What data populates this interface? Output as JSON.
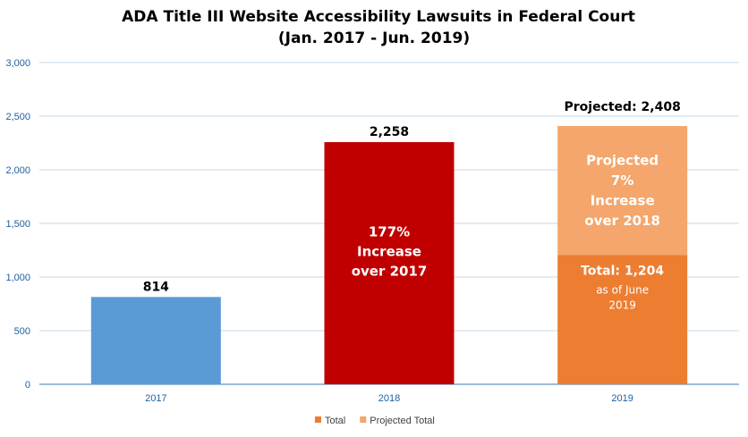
{
  "chart_data": {
    "type": "bar",
    "title": [
      "ADA Title III Website Accessibility Lawsuits in Federal Court",
      "(Jan. 2017 - Jun. 2019)"
    ],
    "categories": [
      "2017",
      "2018",
      "2019"
    ],
    "ylim": [
      0,
      3000
    ],
    "yticks": [
      0,
      500,
      1000,
      1500,
      2000,
      2500,
      3000
    ],
    "ytick_labels": [
      "0",
      "500",
      "1,000",
      "1,500",
      "2,000",
      "2,500",
      "3,000"
    ],
    "grid": true,
    "bars": [
      {
        "category": "2017",
        "value": 814,
        "color": "#5b9bd5",
        "label": "814",
        "inner_text": []
      },
      {
        "category": "2018",
        "value": 2258,
        "color": "#c00000",
        "label": "2,258",
        "inner_text": [
          "177%",
          "Increase",
          "over 2017"
        ]
      }
    ],
    "stacked_bar": {
      "category": "2019",
      "segments": [
        {
          "series": "Total",
          "value": 1204,
          "color": "#ed7d31",
          "inner_title": "Total: 1,204",
          "inner_sub": [
            "as of June",
            "2019"
          ]
        },
        {
          "series": "Projected Total",
          "value": 1204,
          "color": "#f4a66c",
          "inner_text": [
            "Projected",
            "7%",
            "Increase",
            "over 2018"
          ]
        }
      ],
      "top_label": "Projected: 2,408"
    },
    "legend": {
      "placement": "bottom",
      "items": [
        {
          "name": "Total",
          "color": "#ed7d31"
        },
        {
          "name": "Projected Total",
          "color": "#f4a66c"
        }
      ]
    }
  }
}
